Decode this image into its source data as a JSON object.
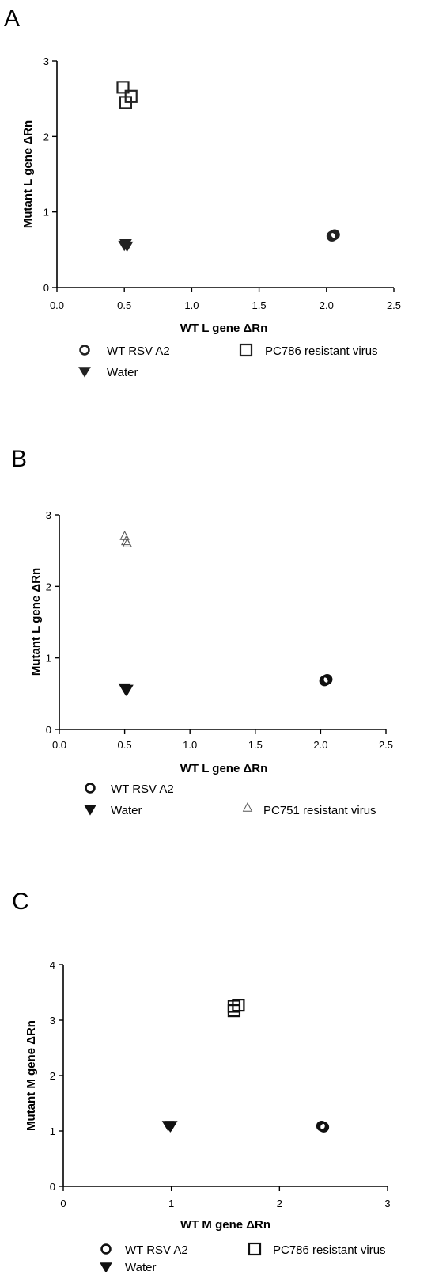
{
  "chart_data": [
    {
      "panel": "A",
      "type": "scatter",
      "xlabel": "WT L gene ΔRn",
      "ylabel": "Mutant L gene ΔRn",
      "xlim": [
        0,
        2.5
      ],
      "ylim": [
        0,
        3
      ],
      "xticks": [
        "0.0",
        "0.5",
        "1.0",
        "1.5",
        "2.0",
        "2.5"
      ],
      "yticks": [
        "0",
        "1",
        "2",
        "3"
      ],
      "legend_placement": "bottom",
      "series": [
        {
          "name": "WT  RSV A2",
          "marker": "open-circle",
          "points": [
            [
              2.05,
              0.69
            ],
            [
              2.04,
              0.68
            ],
            [
              2.06,
              0.7
            ]
          ]
        },
        {
          "name": "PC786 resistant virus",
          "marker": "open-square",
          "points": [
            [
              0.49,
              2.65
            ],
            [
              0.51,
              2.45
            ],
            [
              0.55,
              2.53
            ]
          ]
        },
        {
          "name": "Water",
          "marker": "filled-down-triangle",
          "points": [
            [
              0.51,
              0.58
            ],
            [
              0.52,
              0.55
            ],
            [
              0.5,
              0.56
            ]
          ]
        }
      ]
    },
    {
      "panel": "B",
      "type": "scatter",
      "xlabel": "WT L gene ΔRn",
      "ylabel": "Mutant L gene ΔRn",
      "xlim": [
        0,
        2.5
      ],
      "ylim": [
        0,
        3
      ],
      "xticks": [
        "0.0",
        "0.5",
        "1.0",
        "1.5",
        "2.0",
        "2.5"
      ],
      "yticks": [
        "0",
        "1",
        "2",
        "3"
      ],
      "legend_placement": "bottom",
      "series": [
        {
          "name": "WT  RSV A2",
          "marker": "open-circle",
          "points": [
            [
              2.04,
              0.69
            ],
            [
              2.05,
              0.7
            ],
            [
              2.03,
              0.68
            ]
          ]
        },
        {
          "name": "Water",
          "marker": "filled-down-triangle",
          "points": [
            [
              0.5,
              0.58
            ],
            [
              0.51,
              0.55
            ],
            [
              0.52,
              0.56
            ]
          ]
        },
        {
          "name": "PC751 resistant virus",
          "marker": "open-triangle",
          "points": [
            [
              0.5,
              2.7
            ],
            [
              0.51,
              2.63
            ],
            [
              0.52,
              2.6
            ]
          ]
        }
      ]
    },
    {
      "panel": "C",
      "type": "scatter",
      "xlabel": "WT M gene ΔRn",
      "ylabel": "Mutant M gene ΔRn",
      "xlim": [
        0,
        3
      ],
      "ylim": [
        0,
        4
      ],
      "xticks": [
        "0",
        "1",
        "2",
        "3"
      ],
      "yticks": [
        "0",
        "1",
        "2",
        "3",
        "4"
      ],
      "legend_placement": "bottom",
      "series": [
        {
          "name": "WT  RSV A2",
          "marker": "open-circle",
          "points": [
            [
              2.4,
              1.08
            ],
            [
              2.41,
              1.07
            ],
            [
              2.39,
              1.09
            ]
          ]
        },
        {
          "name": "PC786 resistant virus",
          "marker": "open-square",
          "points": [
            [
              1.58,
              3.25
            ],
            [
              1.62,
              3.27
            ],
            [
              1.58,
              3.17
            ]
          ]
        },
        {
          "name": "Water",
          "marker": "filled-down-triangle",
          "points": [
            [
              0.97,
              1.1
            ],
            [
              0.99,
              1.08
            ],
            [
              1.0,
              1.1
            ]
          ]
        }
      ]
    }
  ]
}
